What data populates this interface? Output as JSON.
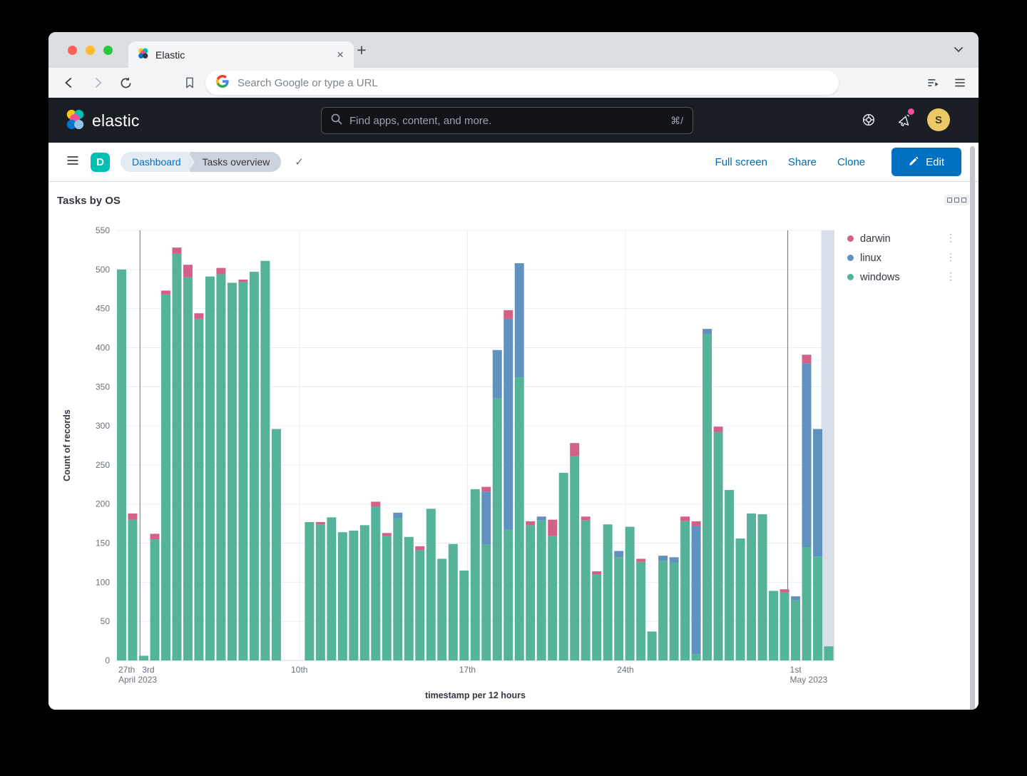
{
  "browser": {
    "tab_title": "Elastic",
    "address_placeholder": "Search Google or type a URL"
  },
  "glyphs": {
    "close": "×",
    "plus": "+",
    "check": "✓",
    "kebab": "⋮"
  },
  "elastic_header": {
    "brand": "elastic",
    "search_placeholder": "Find apps, content, and more.",
    "search_shortcut": "⌘/",
    "avatar_initial": "S"
  },
  "nav": {
    "space_initial": "D",
    "breadcrumbs": [
      {
        "label": "Dashboard"
      },
      {
        "label": "Tasks overview"
      }
    ],
    "actions": [
      {
        "label": "Full screen"
      },
      {
        "label": "Share"
      },
      {
        "label": "Clone"
      }
    ],
    "edit_label": "Edit"
  },
  "panel": {
    "title": "Tasks by OS"
  },
  "chart_data": {
    "type": "bar",
    "stacked": true,
    "title": "Tasks by OS",
    "xlabel": "timestamp per 12 hours",
    "ylabel": "Count of records",
    "ylim": [
      0,
      550
    ],
    "y_step": 50,
    "grid": true,
    "legend_position": "right",
    "legend": [
      {
        "name": "darwin",
        "color": "#D36086"
      },
      {
        "name": "linux",
        "color": "#6092C0"
      },
      {
        "name": "windows",
        "color": "#54B399"
      }
    ],
    "series_order": [
      "windows",
      "linux",
      "darwin"
    ],
    "colors": {
      "windows": "#54B399",
      "linux": "#6092C0",
      "darwin": "#D36086"
    },
    "x_ticks": [
      {
        "label": "27th",
        "sub": "April 2023",
        "f": 0.0,
        "anchor": "start"
      },
      {
        "label": "3rd",
        "f": 0.033,
        "anchor": "start"
      },
      {
        "label": "10th",
        "f": 0.255,
        "anchor": "middle"
      },
      {
        "label": "17th",
        "f": 0.489,
        "anchor": "middle"
      },
      {
        "label": "24th",
        "f": 0.709,
        "anchor": "middle"
      },
      {
        "label": "1st",
        "sub": "May 2023",
        "f": 0.935,
        "anchor": "start"
      }
    ],
    "x_gridlines": [
      {
        "f": 0.033,
        "dark": true
      },
      {
        "f": 0.255,
        "dark": false
      },
      {
        "f": 0.489,
        "dark": false
      },
      {
        "f": 0.709,
        "dark": false
      },
      {
        "f": 0.935,
        "dark": true
      }
    ],
    "end_band": true,
    "end_band_color": "#D9DFE9",
    "bars_series_note": "each bar = [windows, linux, darwin] counts per 12h bucket",
    "bars": [
      [
        500,
        0,
        0
      ],
      [
        180,
        0,
        8
      ],
      [
        6,
        0,
        0
      ],
      [
        155,
        0,
        7
      ],
      [
        468,
        0,
        5
      ],
      [
        520,
        0,
        8
      ],
      [
        490,
        0,
        16
      ],
      [
        437,
        0,
        7
      ],
      [
        491,
        0,
        0
      ],
      [
        494,
        0,
        8
      ],
      [
        483,
        0,
        0
      ],
      [
        484,
        0,
        3
      ],
      [
        497,
        0,
        0
      ],
      [
        511,
        0,
        0
      ],
      [
        296,
        0,
        0
      ],
      [
        0,
        0,
        0
      ],
      [
        0,
        0,
        0
      ],
      [
        177,
        0,
        0
      ],
      [
        174,
        0,
        3
      ],
      [
        183,
        0,
        0
      ],
      [
        164,
        0,
        0
      ],
      [
        166,
        0,
        0
      ],
      [
        173,
        0,
        0
      ],
      [
        197,
        0,
        6
      ],
      [
        159,
        0,
        4
      ],
      [
        182,
        7,
        0
      ],
      [
        158,
        0,
        0
      ],
      [
        141,
        0,
        5
      ],
      [
        194,
        0,
        0
      ],
      [
        130,
        0,
        0
      ],
      [
        149,
        0,
        0
      ],
      [
        115,
        0,
        0
      ],
      [
        219,
        0,
        0
      ],
      [
        148,
        68,
        6
      ],
      [
        335,
        62,
        0
      ],
      [
        167,
        270,
        11
      ],
      [
        362,
        146,
        0
      ],
      [
        173,
        0,
        5
      ],
      [
        179,
        5,
        0
      ],
      [
        159,
        0,
        21
      ],
      [
        240,
        0,
        0
      ],
      [
        261,
        0,
        17
      ],
      [
        179,
        0,
        5
      ],
      [
        110,
        0,
        4
      ],
      [
        174,
        0,
        0
      ],
      [
        132,
        8,
        0
      ],
      [
        171,
        0,
        0
      ],
      [
        126,
        0,
        4
      ],
      [
        37,
        0,
        0
      ],
      [
        127,
        7,
        0
      ],
      [
        125,
        7,
        0
      ],
      [
        178,
        0,
        6
      ],
      [
        8,
        164,
        6
      ],
      [
        417,
        7,
        0
      ],
      [
        292,
        0,
        7
      ],
      [
        218,
        0,
        0
      ],
      [
        156,
        0,
        0
      ],
      [
        188,
        0,
        0
      ],
      [
        187,
        0,
        0
      ],
      [
        89,
        0,
        0
      ],
      [
        87,
        0,
        4
      ],
      [
        77,
        5,
        0
      ],
      [
        145,
        235,
        11
      ],
      [
        133,
        163,
        0
      ],
      [
        18,
        0,
        0
      ]
    ]
  }
}
